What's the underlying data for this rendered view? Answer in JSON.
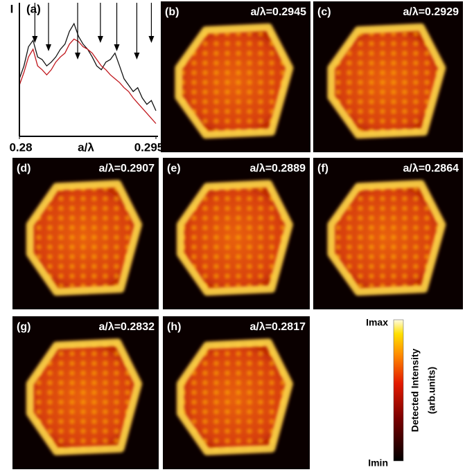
{
  "chart_data": {
    "type": "line",
    "panel_label": "(a)",
    "y_label": "I",
    "x_label": "a/λ",
    "x": [
      0.28,
      0.2805,
      0.281,
      0.2815,
      0.282,
      0.2825,
      0.283,
      0.2835,
      0.284,
      0.2845,
      0.285,
      0.2855,
      0.286,
      0.2865,
      0.287,
      0.2875,
      0.288,
      0.2885,
      0.289,
      0.2895,
      0.29,
      0.2905,
      0.291,
      0.2915,
      0.292,
      0.2925,
      0.293,
      0.2935,
      0.294,
      0.2945,
      0.295
    ],
    "series": [
      {
        "color": "#111111",
        "values": [
          45,
          55,
          70,
          75,
          62,
          60,
          55,
          58,
          62,
          68,
          72,
          82,
          88,
          78,
          72,
          68,
          62,
          55,
          52,
          58,
          60,
          65,
          55,
          45,
          40,
          35,
          38,
          30,
          25,
          28,
          20
        ]
      },
      {
        "color": "#c0161c",
        "values": [
          40,
          50,
          62,
          68,
          55,
          52,
          48,
          52,
          58,
          62,
          65,
          72,
          76,
          74,
          70,
          68,
          65,
          60,
          55,
          52,
          48,
          45,
          42,
          38,
          35,
          30,
          26,
          22,
          18,
          14,
          10
        ]
      }
    ],
    "markers": [
      0.2817,
      0.2832,
      0.2864,
      0.2889,
      0.2907,
      0.2929,
      0.2945
    ],
    "xlim": [
      0.28,
      0.295
    ],
    "xticks": [
      0.28,
      0.295
    ],
    "ylim": [
      0,
      100
    ]
  },
  "panels": [
    {
      "label": "(b)",
      "text": "a/λ=0.2945"
    },
    {
      "label": "(c)",
      "text": "a/λ=0.2929"
    },
    {
      "label": "(d)",
      "text": "a/λ=0.2907"
    },
    {
      "label": "(e)",
      "text": "a/λ=0.2889"
    },
    {
      "label": "(f)",
      "text": "a/λ=0.2864"
    },
    {
      "label": "(g)",
      "text": "a/λ=0.2832"
    },
    {
      "label": "(h)",
      "text": "a/λ=0.2817"
    }
  ],
  "colorbar": {
    "max_label": "Imax",
    "min_label": "Imin",
    "title": "Detected Intensity",
    "unit": "(arb.units)"
  }
}
